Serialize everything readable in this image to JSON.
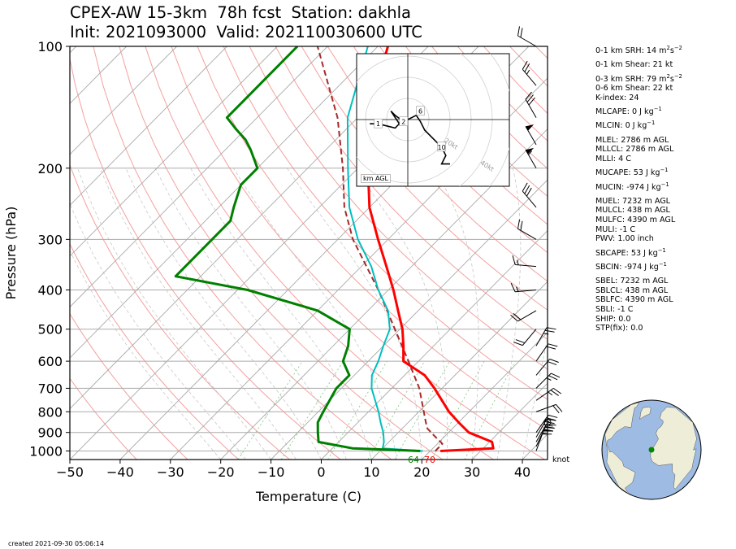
{
  "header": {
    "title_line1": "CPEX-AW 15-3km  78h fcst  Station: dakhla",
    "title_line2": "Init: 2021093000  Valid: 202110030600 UTC"
  },
  "created": "created 2021-09-30 05:06:14",
  "indices": [
    {
      "pre": "0-1 km SRH: 14 m",
      "sup1": "2",
      "mid": "s",
      "sup2": "−2",
      "gap": true
    },
    {
      "pre": "0-1 km Shear: 21 kt",
      "gap": true
    },
    {
      "pre": "0-3 km SRH: 79 m",
      "sup1": "2",
      "mid": "s",
      "sup2": "−2"
    },
    {
      "pre": "0-6 km Shear: 22 kt"
    },
    {
      "pre": "K-index: 24",
      "gap": true
    },
    {
      "pre": "MLCAPE: 0 J kg",
      "sup1": "−1",
      "gap": true
    },
    {
      "pre": "MLCIN: 0 J kg",
      "sup1": "−1",
      "gap": true
    },
    {
      "pre": "MLEL: 2786 m AGL"
    },
    {
      "pre": "MLLCL: 2786 m AGL"
    },
    {
      "pre": "MLLI: 4 C",
      "gap": true
    },
    {
      "pre": "MUCAPE: 53 J kg",
      "sup1": "−1",
      "gap": true
    },
    {
      "pre": "MUCIN: -974 J kg",
      "sup1": "−1",
      "gap": true
    },
    {
      "pre": "MUEL: 7232 m AGL"
    },
    {
      "pre": "MULCL: 438 m AGL"
    },
    {
      "pre": "MULFC: 4390 m AGL"
    },
    {
      "pre": "MULI: -1 C"
    },
    {
      "pre": "PWV: 1.00 inch",
      "gap": true
    },
    {
      "pre": "SBCAPE: 53 J kg",
      "sup1": "−1",
      "gap": true
    },
    {
      "pre": "SBCIN: -974 J kg",
      "sup1": "−1",
      "gap": true
    },
    {
      "pre": "SBEL: 7232 m AGL"
    },
    {
      "pre": "SBLCL: 438 m AGL"
    },
    {
      "pre": "SBLFC: 4390 m AGL"
    },
    {
      "pre": "SBLI: -1 C"
    },
    {
      "pre": "SHIP: 0.0"
    },
    {
      "pre": "STP(fix): 0.0"
    }
  ],
  "hodograph": {
    "label": "km AGL",
    "markers": [
      "1",
      "2",
      "6",
      "10"
    ],
    "ring_labels": [
      "20kt",
      "40kt",
      "60kt",
      "80kt"
    ]
  },
  "knot_label": "knot",
  "colors": {
    "temperature": "#ff0000",
    "dewpoint": "#008000",
    "wetbulb": "#00bfbf",
    "parcel": "#a52a2a",
    "dry_adiabat": "#f4a0a0",
    "moist_adiabat": "#c8c8c8",
    "mixing_ratio": "#7fc47f",
    "isotherm": "#aaaaaa",
    "isobar": "#aaaaaa",
    "ocean": "#9ebbe3",
    "land": "#eeeed8"
  },
  "chart_data": {
    "type": "line",
    "xlabel": "Temperature (C)",
    "ylabel": "Pressure (hPa)",
    "xlim": [
      -50,
      45
    ],
    "ylim": [
      1050,
      100
    ],
    "y_scale": "log",
    "skew": true,
    "xticks": [
      -50,
      -40,
      -30,
      -20,
      -10,
      0,
      10,
      20,
      30,
      40
    ],
    "yticks": [
      1000,
      900,
      800,
      700,
      600,
      500,
      400,
      300,
      200,
      100
    ],
    "surface_labels": {
      "dewpoint": "64",
      "temperature": "70"
    },
    "series": [
      {
        "name": "temperature",
        "points": [
          [
            1000,
            22
          ],
          [
            985,
            32
          ],
          [
            950,
            30.5
          ],
          [
            900,
            24
          ],
          [
            850,
            20
          ],
          [
            800,
            16
          ],
          [
            700,
            8.5
          ],
          [
            650,
            4
          ],
          [
            600,
            -3
          ],
          [
            550,
            -6
          ],
          [
            500,
            -9.5
          ],
          [
            450,
            -14
          ],
          [
            400,
            -19
          ],
          [
            350,
            -25
          ],
          [
            300,
            -32
          ],
          [
            250,
            -40
          ],
          [
            200,
            -48
          ],
          [
            150,
            -58
          ],
          [
            100,
            -68
          ]
        ]
      },
      {
        "name": "dewpoint",
        "points": [
          [
            1000,
            18
          ],
          [
            985,
            4
          ],
          [
            950,
            -4
          ],
          [
            900,
            -6
          ],
          [
            850,
            -8
          ],
          [
            800,
            -9
          ],
          [
            700,
            -11
          ],
          [
            650,
            -11
          ],
          [
            600,
            -15
          ],
          [
            550,
            -17
          ],
          [
            500,
            -20
          ],
          [
            450,
            -30
          ],
          [
            400,
            -48
          ],
          [
            370,
            -65
          ],
          [
            330,
            -65
          ],
          [
            300,
            -65
          ],
          [
            270,
            -65
          ],
          [
            250,
            -67
          ],
          [
            220,
            -70
          ],
          [
            200,
            -70
          ],
          [
            180,
            -75
          ],
          [
            170,
            -78
          ],
          [
            160,
            -82
          ],
          [
            150,
            -86
          ],
          [
            130,
            -86
          ],
          [
            115,
            -86
          ],
          [
            100,
            -86
          ]
        ]
      },
      {
        "name": "wetbulb",
        "points": [
          [
            1000,
            18.5
          ],
          [
            985,
            10
          ],
          [
            950,
            9
          ],
          [
            900,
            7
          ],
          [
            850,
            4.5
          ],
          [
            800,
            2
          ],
          [
            700,
            -4
          ],
          [
            650,
            -6.5
          ],
          [
            600,
            -8
          ],
          [
            550,
            -10
          ],
          [
            500,
            -12
          ],
          [
            450,
            -16
          ],
          [
            400,
            -22
          ],
          [
            350,
            -28
          ],
          [
            300,
            -36
          ],
          [
            250,
            -44
          ],
          [
            200,
            -52
          ],
          [
            150,
            -62
          ],
          [
            100,
            -72
          ]
        ]
      },
      {
        "name": "parcel",
        "points": [
          [
            1000,
            21
          ],
          [
            960,
            21
          ],
          [
            920,
            18
          ],
          [
            880,
            15
          ],
          [
            850,
            13.5
          ],
          [
            800,
            11
          ],
          [
            700,
            5.5
          ],
          [
            600,
            -2
          ],
          [
            500,
            -11
          ],
          [
            400,
            -22
          ],
          [
            300,
            -37
          ],
          [
            250,
            -45
          ],
          [
            200,
            -53
          ],
          [
            150,
            -64
          ],
          [
            100,
            -82
          ]
        ]
      }
    ],
    "wind_barbs": [
      {
        "p": 1000,
        "speed": 20,
        "dir": 20
      },
      {
        "p": 975,
        "speed": 25,
        "dir": 25
      },
      {
        "p": 950,
        "speed": 30,
        "dir": 30
      },
      {
        "p": 925,
        "speed": 30,
        "dir": 30
      },
      {
        "p": 900,
        "speed": 25,
        "dir": 35
      },
      {
        "p": 850,
        "speed": 0,
        "dir": 0
      },
      {
        "p": 800,
        "speed": 20,
        "dir": 70
      },
      {
        "p": 750,
        "speed": 25,
        "dir": 55
      },
      {
        "p": 700,
        "speed": 25,
        "dir": 45
      },
      {
        "p": 650,
        "speed": 20,
        "dir": 40
      },
      {
        "p": 600,
        "speed": 20,
        "dir": 35
      },
      {
        "p": 550,
        "speed": 25,
        "dir": 30
      },
      {
        "p": 500,
        "speed": 20,
        "dir": 220
      },
      {
        "p": 450,
        "speed": 20,
        "dir": 240
      },
      {
        "p": 400,
        "speed": 15,
        "dir": 265
      },
      {
        "p": 350,
        "speed": 15,
        "dir": 275
      },
      {
        "p": 300,
        "speed": 20,
        "dir": 300
      },
      {
        "p": 250,
        "speed": 30,
        "dir": 320
      },
      {
        "p": 200,
        "speed": 55,
        "dir": 330
      },
      {
        "p": 175,
        "speed": 50,
        "dir": 330
      },
      {
        "p": 150,
        "speed": 30,
        "dir": 330
      },
      {
        "p": 125,
        "speed": 25,
        "dir": 320
      },
      {
        "p": 100,
        "speed": 20,
        "dir": 300
      }
    ],
    "hodograph_path_kt": [
      [
        -18,
        -2
      ],
      [
        -14,
        -2
      ],
      [
        -10,
        -3
      ],
      [
        -6,
        -4
      ],
      [
        -4,
        -2
      ],
      [
        -6,
        1
      ],
      [
        -8,
        4
      ],
      [
        -6,
        2
      ],
      [
        -2,
        -1
      ],
      [
        4,
        2
      ],
      [
        6,
        -1
      ],
      [
        8,
        -5
      ],
      [
        12,
        -9
      ],
      [
        16,
        -13
      ],
      [
        18,
        -17
      ],
      [
        16,
        -21
      ],
      [
        20,
        -21
      ]
    ],
    "hodograph_marker_kt": {
      "1": [
        -14,
        -2
      ],
      "2": [
        -2,
        -1
      ],
      "6": [
        6,
        4
      ],
      "10": [
        16,
        -13
      ]
    },
    "station_location": {
      "lat": 23.7,
      "lon": -15.9
    }
  }
}
